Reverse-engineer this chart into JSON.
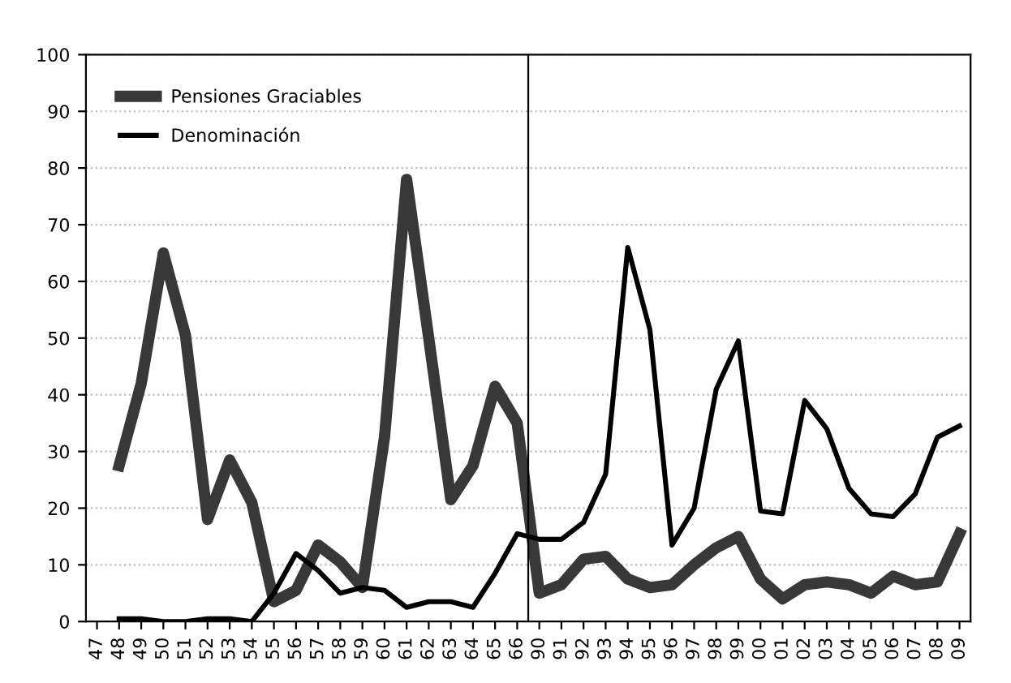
{
  "chart_data": {
    "type": "line",
    "categories": [
      "47",
      "48",
      "49",
      "50",
      "51",
      "52",
      "53",
      "54",
      "55",
      "56",
      "57",
      "58",
      "59",
      "60",
      "61",
      "62",
      "63",
      "64",
      "65",
      "66",
      "90",
      "91",
      "92",
      "93",
      "94",
      "95",
      "96",
      "97",
      "98",
      "99",
      "00",
      "01",
      "02",
      "03",
      "04",
      "05",
      "06",
      "07",
      "08",
      "09"
    ],
    "series": [
      {
        "name": "Pensiones Graciables",
        "color": "#383838",
        "values": [
          null,
          27.5,
          42,
          65,
          50.5,
          18,
          28.5,
          21,
          3.5,
          5.5,
          13.5,
          10.5,
          6,
          32.5,
          78,
          50,
          21.5,
          27.5,
          41.5,
          35,
          5,
          6.5,
          11,
          11.5,
          7.5,
          6,
          6.5,
          10,
          13,
          15,
          7.5,
          4,
          6.5,
          7,
          6.5,
          5,
          8,
          6.5,
          7,
          15.5
        ]
      },
      {
        "name": "Denominación",
        "color": "#000000",
        "values": [
          null,
          0.5,
          0.5,
          0,
          0,
          0.5,
          0.5,
          0,
          5,
          12,
          9,
          5,
          6,
          5.5,
          2.5,
          3.5,
          3.5,
          2.5,
          8.5,
          15.5,
          14.5,
          14.5,
          17.5,
          26,
          66,
          51.5,
          13.5,
          20,
          41,
          49.5,
          19.5,
          19,
          39,
          34,
          23.5,
          19,
          18.5,
          22.5,
          32.5,
          34.5
        ]
      }
    ],
    "ylim": [
      0,
      100
    ],
    "yticks": [
      0,
      10,
      20,
      30,
      40,
      50,
      60,
      70,
      80,
      90,
      100
    ],
    "ref_lines": [
      {
        "axis": "x",
        "value": "90",
        "color": "#000000"
      }
    ],
    "grid": "y",
    "legend": "top left",
    "marker": "none",
    "line_style": "solid"
  }
}
